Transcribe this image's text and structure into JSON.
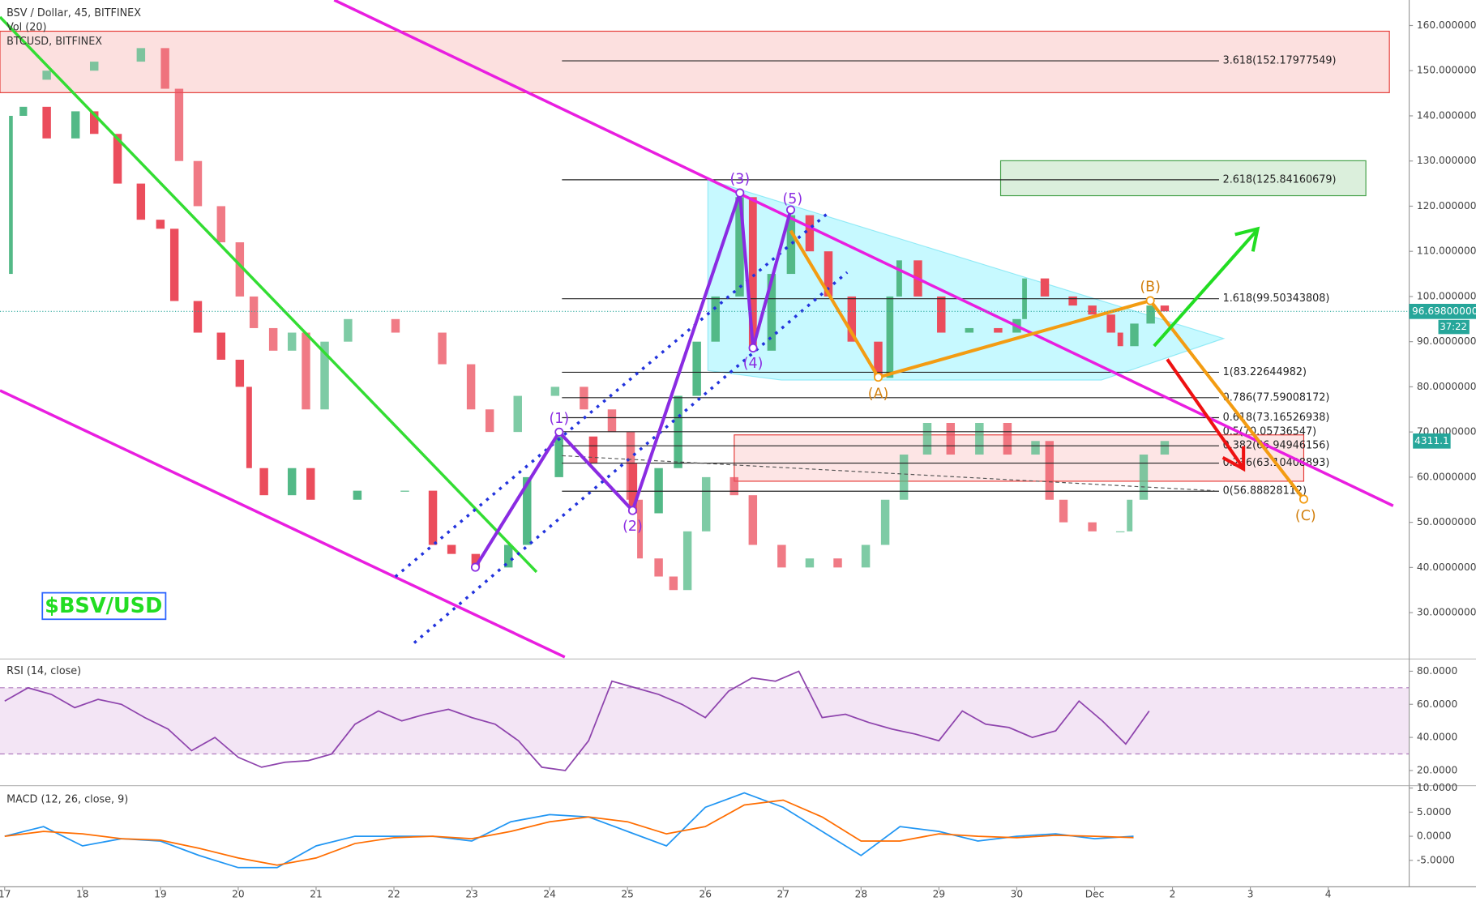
{
  "chart_data": [
    {
      "type": "candlestick",
      "title": "BSV / Dollar, 45, BITFINEX",
      "volume_label": "Vol (20)",
      "up_color": "#53b987",
      "down_color": "#eb4d5c",
      "xlim": [
        -0.06,
        18.04
      ],
      "xticks": [
        {
          "value": 0,
          "label": "17"
        },
        {
          "value": 1,
          "label": "18"
        },
        {
          "value": 2,
          "label": "19"
        },
        {
          "value": 3,
          "label": "20"
        },
        {
          "value": 4,
          "label": "21"
        },
        {
          "value": 5,
          "label": "22"
        },
        {
          "value": 6,
          "label": "23"
        },
        {
          "value": 7,
          "label": "24"
        },
        {
          "value": 8,
          "label": "25"
        },
        {
          "value": 9,
          "label": "26"
        },
        {
          "value": 10,
          "label": "27"
        },
        {
          "value": 11,
          "label": "28"
        },
        {
          "value": 12,
          "label": "29"
        },
        {
          "value": 13,
          "label": "30"
        },
        {
          "value": 14,
          "label": "Dec"
        },
        {
          "value": 15,
          "label": "2"
        },
        {
          "value": 16,
          "label": "3"
        },
        {
          "value": 17,
          "label": "4"
        }
      ],
      "ylim": [
        20.16,
        165.65
      ],
      "yticks": [
        {
          "value": 160,
          "label": "160.00000000"
        },
        {
          "value": 150,
          "label": "150.00000000"
        },
        {
          "value": 140,
          "label": "140.00000000"
        },
        {
          "value": 130,
          "label": "130.00000000"
        },
        {
          "value": 120,
          "label": "120.00000000"
        },
        {
          "value": 110,
          "label": "110.00000000"
        },
        {
          "value": 100,
          "label": "100.00000000"
        },
        {
          "value": 90,
          "label": "90.00000000"
        },
        {
          "value": 80,
          "label": "80.00000000"
        },
        {
          "value": 70,
          "label": "70.00000000"
        },
        {
          "value": 60,
          "label": "60.00000000"
        },
        {
          "value": 50,
          "label": "50.00000000"
        },
        {
          "value": 40,
          "label": "40.00000000"
        },
        {
          "value": 30,
          "label": "30.00000000"
        }
      ],
      "series": [
        {
          "x": [
            0,
            0.08,
            0.24,
            0.54,
            0.91,
            1.15,
            1.45,
            1.75,
            2.0,
            2.18,
            2.48,
            2.78,
            3.02,
            3.14,
            3.33,
            3.69,
            3.93,
            4.53,
            5.14,
            5.5,
            5.74,
            6.05,
            6.47,
            6.71,
            7.12,
            7.56,
            8.07,
            8.4,
            8.65,
            8.89,
            9.13,
            9.44,
            9.61,
            9.85,
            10.1,
            10.34,
            10.58,
            10.88,
            11.22,
            11.37,
            11.49,
            11.73,
            12.03,
            12.39,
            12.76,
            13.0,
            13.1,
            13.36,
            13.72,
            13.97,
            14.21,
            14.33,
            14.51,
            14.72,
            14.9
          ],
          "values": [
            105,
            140,
            142,
            135,
            141,
            136,
            125,
            117,
            115,
            99,
            92,
            86,
            80,
            62,
            56,
            62,
            55,
            57,
            57,
            45,
            43,
            40,
            45,
            60,
            69,
            63,
            52,
            62,
            78,
            90,
            100,
            122,
            88,
            105,
            118,
            110,
            100,
            90,
            82,
            100,
            108,
            100,
            92,
            93,
            92,
            95,
            104,
            100,
            98,
            96,
            92,
            89,
            94,
            98,
            96.7
          ]
        },
        {
          "name": "BTCUSD, BITFINEX",
          "x": [
            0,
            0.54,
            1.15,
            1.75,
            2.06,
            2.24,
            2.48,
            2.78,
            3.02,
            3.2,
            3.45,
            3.69,
            3.87,
            4.11,
            4.41,
            5.02,
            5.62,
            5.99,
            6.23,
            6.59,
            7.07,
            7.44,
            7.8,
            8.04,
            8.16,
            8.4,
            8.59,
            8.77,
            9.01,
            9.37,
            9.61,
            9.98,
            10.34,
            10.7,
            11.06,
            11.31,
            11.55,
            11.85,
            12.15,
            12.52,
            12.88,
            13.24,
            13.42,
            13.6,
            13.97,
            14.33,
            14.45,
            14.63,
            14.9
          ],
          "values": [
            148,
            150,
            152,
            155,
            146,
            130,
            120,
            112,
            100,
            93,
            88,
            92,
            75,
            90,
            95,
            92,
            85,
            75,
            70,
            78,
            80,
            75,
            70,
            55,
            42,
            38,
            35,
            48,
            60,
            56,
            45,
            40,
            42,
            40,
            45,
            55,
            65,
            72,
            65,
            72,
            65,
            68,
            55,
            50,
            48,
            48,
            55,
            65,
            68
          ]
        }
      ],
      "fib_levels": [
        {
          "value": 152.17977549,
          "label": "3.618(152.17977549)"
        },
        {
          "value": 125.84160679,
          "label": "2.618(125.84160679)"
        },
        {
          "value": 99.50343808,
          "label": "1.618(99.50343808)"
        },
        {
          "value": 83.22644982,
          "label": "1(83.22644982)"
        },
        {
          "value": 77.59008172,
          "label": "0.786(77.59008172)"
        },
        {
          "value": 73.16526938,
          "label": "0.618(73.16526938)"
        },
        {
          "value": 70.05736547,
          "label": "0.5(70.05736547)"
        },
        {
          "value": 66.94946156,
          "label": "0.382(66.94946156)"
        },
        {
          "value": 63.10408893,
          "label": "0.236(63.10408893)"
        },
        {
          "value": 56.88828112,
          "label": "0(56.88828112)"
        }
      ],
      "wave_labels": [
        "(1)",
        "(2)",
        "(3)",
        "(4)",
        "(5)",
        "(A)",
        "(B)",
        "(C)"
      ],
      "last_price_label": "96.69800000",
      "countdown": "37:22",
      "overlay_last_label": "4311.1",
      "watermark": "$BSV/USD"
    },
    {
      "type": "line",
      "title": "RSI (14, close)",
      "color": "#8e44ad",
      "band": [
        30,
        70
      ],
      "ylim": [
        11.4,
        85.7
      ],
      "yticks": [
        {
          "value": 80,
          "label": "80.0000"
        },
        {
          "value": 60,
          "label": "60.0000"
        },
        {
          "value": 40,
          "label": "40.0000"
        },
        {
          "value": 20,
          "label": "20.0000"
        }
      ],
      "x": [
        0,
        0.3,
        0.6,
        0.9,
        1.2,
        1.5,
        1.8,
        2.1,
        2.4,
        2.7,
        3.0,
        3.3,
        3.6,
        3.9,
        4.2,
        4.5,
        4.8,
        5.1,
        5.4,
        5.7,
        6.0,
        6.3,
        6.6,
        6.9,
        7.2,
        7.5,
        7.8,
        8.1,
        8.4,
        8.7,
        9.0,
        9.3,
        9.6,
        9.9,
        10.2,
        10.5,
        10.8,
        11.1,
        11.4,
        11.7,
        12.0,
        12.3,
        12.6,
        12.9,
        13.2,
        13.5,
        13.8,
        14.1,
        14.4,
        14.7
      ],
      "values": [
        62,
        70,
        66,
        58,
        63,
        60,
        52,
        45,
        32,
        40,
        28,
        22,
        25,
        26,
        30,
        48,
        56,
        50,
        54,
        57,
        52,
        48,
        38,
        22,
        20,
        38,
        74,
        70,
        66,
        60,
        52,
        68,
        76,
        74,
        80,
        52,
        54,
        49,
        45,
        42,
        38,
        56,
        48,
        46,
        40,
        44,
        62,
        50,
        36,
        56
      ]
    },
    {
      "type": "line",
      "title": "MACD (12, 26, close, 9)",
      "ylim": [
        -9.9,
        10.1
      ],
      "yticks": [
        {
          "value": 10,
          "label": "10.0000"
        },
        {
          "value": 5,
          "label": "5.0000"
        },
        {
          "value": 0,
          "label": "0.0000"
        },
        {
          "value": -5,
          "label": "-5.0000"
        }
      ],
      "x": [
        0,
        0.5,
        1,
        1.5,
        2,
        2.5,
        3,
        3.5,
        4,
        4.5,
        5,
        5.5,
        6,
        6.5,
        7,
        7.5,
        8,
        8.5,
        9,
        9.5,
        10,
        10.5,
        11,
        11.5,
        12,
        12.5,
        13,
        13.5,
        14,
        14.5
      ],
      "series": [
        {
          "color": "#2196f3",
          "values": [
            0,
            2,
            -2,
            -0.5,
            -1,
            -4,
            -6.5,
            -6.5,
            -2,
            0,
            0,
            0,
            -1,
            3,
            4.5,
            4,
            1,
            -2,
            6,
            9,
            6,
            1,
            -4,
            2,
            1,
            -1,
            0,
            0.5,
            -0.5,
            0
          ]
        },
        {
          "color": "#ff6d00",
          "values": [
            0,
            1,
            0.5,
            -0.5,
            -0.8,
            -2.5,
            -4.5,
            -6,
            -4.5,
            -1.5,
            -0.3,
            0,
            -0.5,
            1,
            3,
            4,
            3,
            0.5,
            2,
            6.5,
            7.5,
            4,
            -1,
            -1,
            0.5,
            0,
            -0.3,
            0.2,
            0,
            -0.3
          ]
        }
      ]
    }
  ]
}
